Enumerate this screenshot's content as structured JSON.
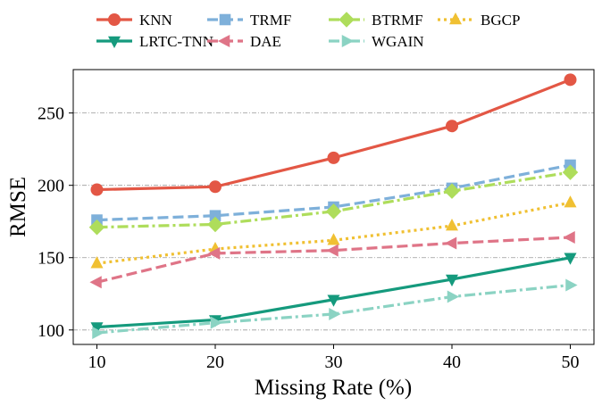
{
  "chart_data": {
    "type": "line",
    "title": "",
    "xlabel": "Missing Rate (%)",
    "ylabel": "RMSE",
    "x": [
      10,
      20,
      30,
      40,
      50
    ],
    "xticks": [
      "10",
      "20",
      "30",
      "40",
      "50"
    ],
    "yticks": [
      100,
      150,
      200,
      250
    ],
    "ylim": [
      90,
      280
    ],
    "xlim": [
      8,
      52
    ],
    "grid": "horizontal dash-dot",
    "legend_position": "top, above plot, 4 columns",
    "series": [
      {
        "name": "KNN",
        "values": [
          197,
          199,
          219,
          241,
          273
        ],
        "color": "#E35745",
        "marker": "circle",
        "dash": "solid"
      },
      {
        "name": "TRMF",
        "values": [
          176,
          179,
          185,
          198,
          214
        ],
        "color": "#7EB0DA",
        "marker": "square",
        "dash": "dashed"
      },
      {
        "name": "BTRMF",
        "values": [
          171,
          173,
          182,
          196,
          209
        ],
        "color": "#AEDD5B",
        "marker": "diamond",
        "dash": "dashdot"
      },
      {
        "name": "BGCP",
        "values": [
          146,
          156,
          162,
          172,
          188
        ],
        "color": "#F0C032",
        "marker": "triangle-up",
        "dash": "dotted"
      },
      {
        "name": "LRTC-TNN",
        "values": [
          102,
          107,
          121,
          135,
          150
        ],
        "color": "#159A7D",
        "marker": "triangle-down",
        "dash": "solid"
      },
      {
        "name": "DAE",
        "values": [
          133,
          153,
          155,
          160,
          164
        ],
        "color": "#DF7487",
        "marker": "triangle-left",
        "dash": "dashed"
      },
      {
        "name": "WGAIN",
        "values": [
          98,
          105,
          111,
          123,
          131
        ],
        "color": "#8BD3C3",
        "marker": "triangle-right",
        "dash": "dashdot"
      }
    ]
  }
}
